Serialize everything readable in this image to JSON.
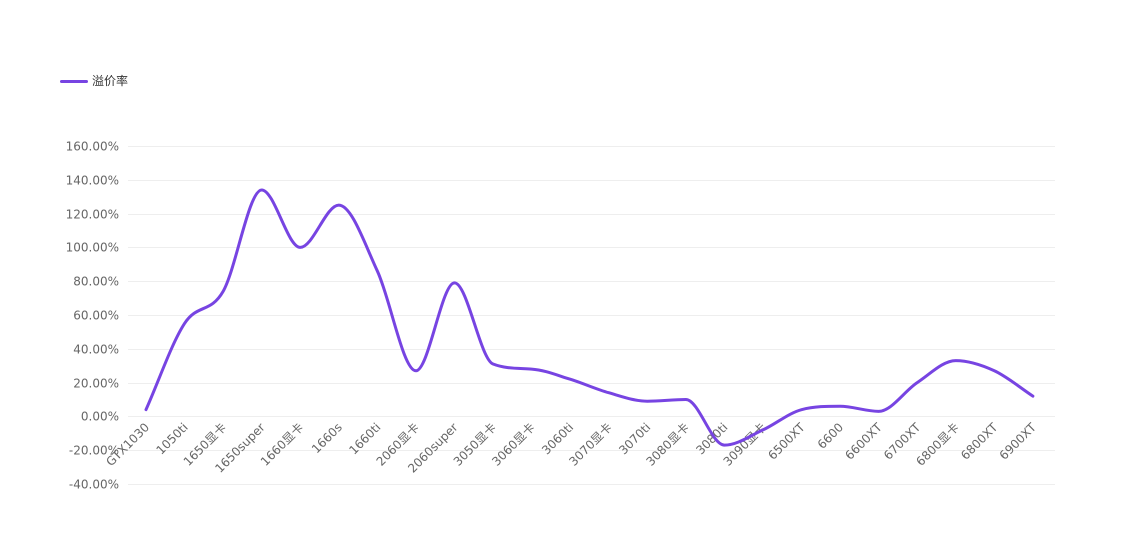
{
  "legend": {
    "series_label": "溢价率"
  },
  "colors": {
    "series": "#7744e2",
    "grid": "#eeeeee",
    "axis_text": "#666666"
  },
  "chart_data": {
    "type": "line",
    "title": "",
    "xlabel": "",
    "ylabel": "",
    "smooth": true,
    "grid": true,
    "legend_position": "top-left",
    "ylim": [
      -40,
      160
    ],
    "y_tick_step": 20,
    "y_tick_format": "percent-2dp",
    "categories": [
      "GTX1030",
      "1050ti",
      "1650显卡",
      "1650super",
      "1660显卡",
      "1660s",
      "1660ti",
      "2060显卡",
      "2060super",
      "3050显卡",
      "3060显卡",
      "3060ti",
      "3070显卡",
      "3070ti",
      "3080显卡",
      "3080ti",
      "3090显卡",
      "6500XT",
      "6600",
      "6600XT",
      "6700XT",
      "6800显卡",
      "6800XT",
      "6900XT"
    ],
    "series": [
      {
        "name": "溢价率",
        "values": [
          4,
          55,
          74,
          134,
          100,
          125,
          86,
          27,
          79,
          31,
          28,
          22,
          14,
          9,
          10,
          -17,
          -8,
          4,
          6,
          3,
          20,
          33,
          27,
          12
        ]
      }
    ]
  }
}
